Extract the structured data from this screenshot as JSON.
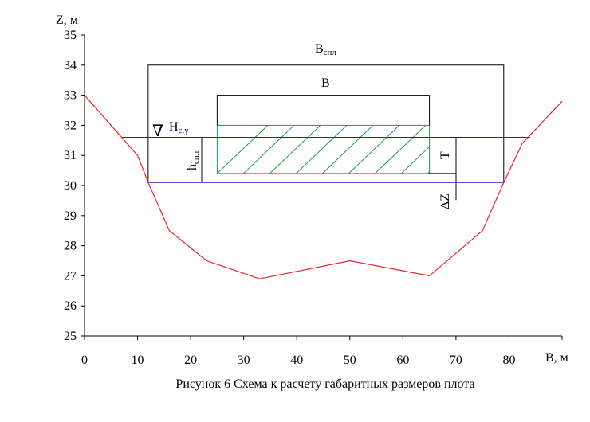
{
  "chart_data": {
    "type": "line",
    "ylabel": "Z, м",
    "xlabel": "В, м",
    "xlim": [
      0,
      90
    ],
    "ylim": [
      25,
      35
    ],
    "x_ticks": [
      0,
      10,
      20,
      30,
      40,
      50,
      60,
      70,
      80,
      90
    ],
    "y_ticks": [
      25,
      26,
      27,
      28,
      29,
      30,
      31,
      32,
      33,
      34,
      35
    ],
    "series": [
      {
        "color": "#e8262b",
        "points": [
          [
            0,
            33.0
          ],
          [
            10,
            31.0
          ],
          [
            12,
            30.1
          ],
          [
            16,
            28.5
          ],
          [
            23,
            27.5
          ],
          [
            33,
            26.9
          ],
          [
            50,
            27.5
          ],
          [
            65,
            27.0
          ],
          [
            75,
            28.5
          ],
          [
            79,
            30.1
          ],
          [
            82.5,
            31.4
          ],
          [
            90,
            32.8
          ]
        ]
      }
    ],
    "water_level": {
      "z": 31.6,
      "x_from": 7,
      "x_to": 84,
      "color": "#1f1fc8"
    },
    "bottom_level": {
      "z": 30.1,
      "x_from": 12,
      "x_to": 79,
      "color": "#1f1fc8"
    },
    "outer_frame": {
      "x_from": 12,
      "x_to": 79,
      "z_from": 30.1,
      "z_to": 34.0
    },
    "inner_frame": {
      "x_from": 25,
      "x_to": 65,
      "z_from": 32.0,
      "z_to": 33.0
    },
    "hatched_body": {
      "x_from": 25,
      "x_to": 65,
      "z_from": 30.4,
      "z_to": 32.0,
      "color": "#1a9a57"
    },
    "labels": {
      "b_spl_main": "В",
      "b_spl_sub": "спл",
      "b": "В",
      "h_main": "Н",
      "h_sub": "с.у",
      "h_spl_main": "h",
      "h_spl_sub": "спл",
      "t": "Т",
      "dz": "ΔZ",
      "level_mark": "∇"
    }
  },
  "caption": "Рисунок 6 Схема к расчету габаритных размеров плота"
}
